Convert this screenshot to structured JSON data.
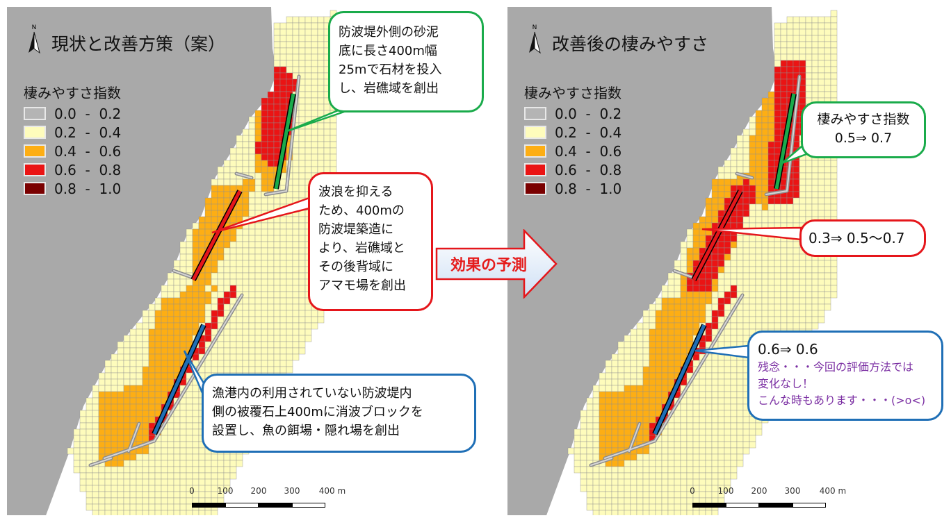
{
  "left": {
    "title": "現状と改善方策（案）",
    "north_label": "N",
    "legend_title": "棲みやすさ指数",
    "legend": [
      {
        "label": "0.0  -  0.2",
        "color": "#b4b4b4"
      },
      {
        "label": "0.2  -  0.4",
        "color": "#fefcbc"
      },
      {
        "label": "0.4  -  0.6",
        "color": "#fdae14"
      },
      {
        "label": "0.6  -  0.8",
        "color": "#ea1414"
      },
      {
        "label": "0.8  -  1.0",
        "color": "#7a0000"
      }
    ],
    "scale": {
      "ticks": [
        "0",
        "100",
        "200",
        "300",
        "400 m"
      ]
    },
    "callouts": {
      "green": [
        "防波堤外側の砂泥",
        "底に長さ400m幅",
        "25mで石材を投入",
        "し、岩礁域を創出"
      ],
      "red": [
        "波浪を抑える",
        "ため、400mの",
        "防波堤築造に",
        "より、岩礁域と",
        "その後背域に",
        "アマモ場を創出"
      ],
      "blue": [
        "漁港内の利用されていない防波堤内",
        "側の被覆石上400mに消波ブロックを",
        "設置し、魚の餌場・隠れ場を創出"
      ]
    }
  },
  "arrow_label": "効果の予測",
  "right": {
    "title": "改善後の棲みやすさ",
    "north_label": "N",
    "legend_title": "棲みやすさ指数",
    "legend": [
      {
        "label": "0.0  -  0.2",
        "color": "#b4b4b4"
      },
      {
        "label": "0.2  -  0.4",
        "color": "#fefcbc"
      },
      {
        "label": "0.4  -  0.6",
        "color": "#fdae14"
      },
      {
        "label": "0.6  -  0.8",
        "color": "#ea1414"
      },
      {
        "label": "0.8  -  1.0",
        "color": "#7a0000"
      }
    ],
    "scale": {
      "ticks": [
        "0",
        "100",
        "200",
        "300",
        "400 m"
      ]
    },
    "callouts": {
      "green": [
        "棲みやすさ指数",
        "0.5⇒ 0.7"
      ],
      "red": "0.3⇒ 0.5〜0.7",
      "blue_value": "0.6⇒ 0.6",
      "blue_note": [
        "残念・・・今回の評価方法では",
        "変化なし！",
        "こんな時もあります・・・(>o<)"
      ]
    }
  },
  "colors": {
    "green": "#1aab4b",
    "red": "#e5161b",
    "blue": "#1f6fb6",
    "purple": "#7b2fa3",
    "land": "#a9a9a9"
  }
}
